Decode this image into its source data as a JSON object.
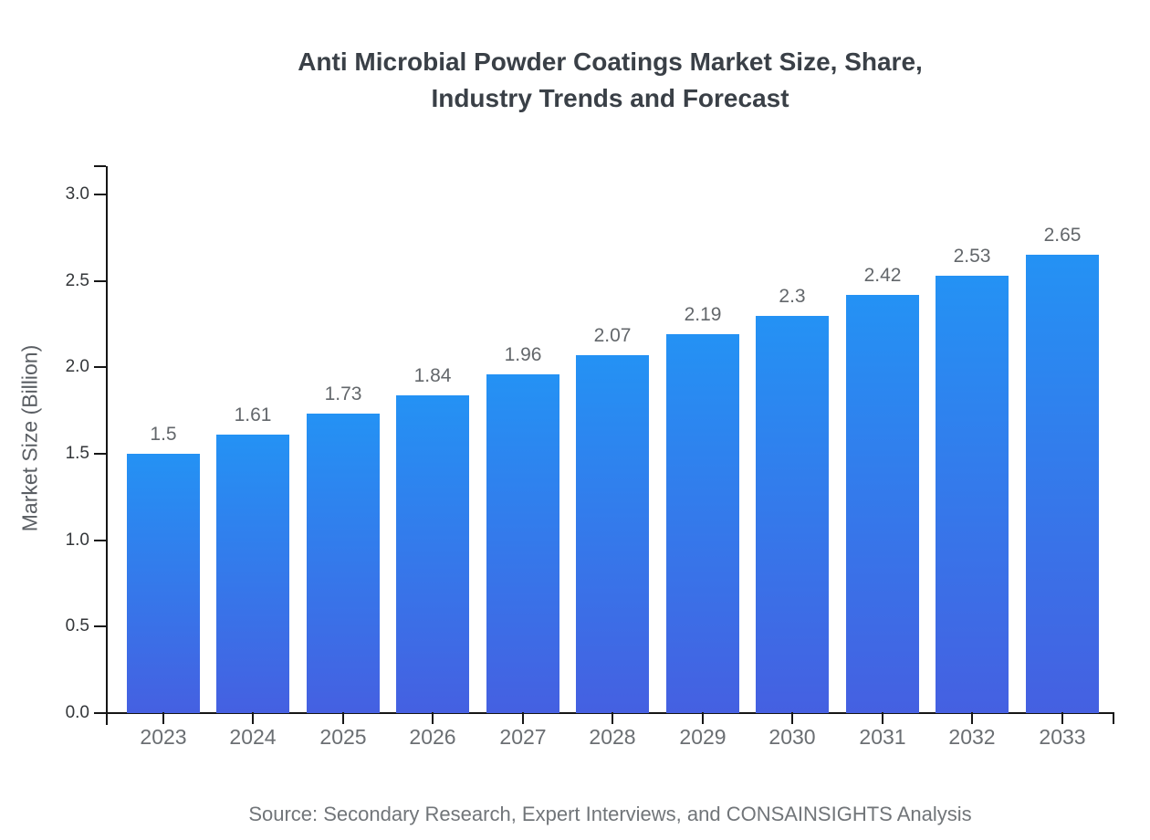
{
  "chart_data": {
    "type": "bar",
    "title": "Anti Microbial Powder Coatings Market Size, Share, Industry Trends and Forecast",
    "title_lines": [
      "Anti Microbial Powder Coatings Market Size, Share,",
      "Industry Trends and Forecast"
    ],
    "ylabel": "Market Size (Billion)",
    "xlabel": "",
    "categories": [
      "2023",
      "2024",
      "2025",
      "2026",
      "2027",
      "2028",
      "2029",
      "2030",
      "2031",
      "2032",
      "2033"
    ],
    "values": [
      1.5,
      1.61,
      1.73,
      1.84,
      1.96,
      2.07,
      2.19,
      2.3,
      2.42,
      2.53,
      2.65
    ],
    "value_labels": [
      "1.5",
      "1.61",
      "1.73",
      "1.84",
      "1.96",
      "2.07",
      "2.19",
      "2.3",
      "2.42",
      "2.53",
      "2.65"
    ],
    "y_ticks": [
      0.0,
      0.5,
      1.0,
      1.5,
      2.0,
      2.5,
      3.0
    ],
    "y_tick_labels": [
      "0.0",
      "0.5",
      "1.0",
      "1.5",
      "2.0",
      "2.5",
      "3.0"
    ],
    "ylim": [
      0,
      3.16
    ],
    "grid": false,
    "legend": false,
    "source": "Source: Secondary Research, Expert Interviews, and CONSAINSIGHTS Analysis",
    "colors": {
      "bar_top": "#2492f4",
      "bar_bottom": "#4560e1",
      "axis": "#161616",
      "title": "#3a4047",
      "y_tick_label": "#333639",
      "x_tick_label": "#6a6e72",
      "value_label": "#63676b",
      "ylabel": "#5a5e63",
      "source": "#717579",
      "background": "#ffffff"
    }
  }
}
